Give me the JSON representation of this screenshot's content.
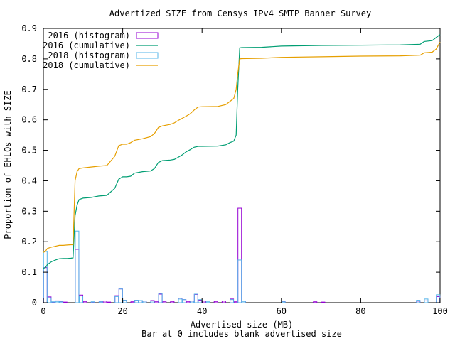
{
  "chart_data": {
    "type": "line",
    "title": "Advertized SIZE from Censys IPv4 SMTP Banner Survey",
    "xlabel": "Advertised size (MB)",
    "xlabel2": "Bar at 0 includes blank advertised size",
    "ylabel": "Proportion of EHLOs with SIZE",
    "xlim": [
      0,
      100
    ],
    "ylim": [
      0,
      0.9
    ],
    "xticks": [
      0,
      20,
      40,
      60,
      80,
      100
    ],
    "yticks": [
      0,
      0.1,
      0.2,
      0.3,
      0.4,
      0.5,
      0.6,
      0.7,
      0.8,
      0.9
    ],
    "xtick_labels": [
      "0",
      "20",
      "40",
      "60",
      "80",
      "100"
    ],
    "ytick_labels": [
      "0",
      "0.1",
      "0.2",
      "0.3",
      "0.4",
      "0.5",
      "0.6",
      "0.7",
      "0.8",
      "0.9"
    ],
    "grid": false,
    "legend_position": "top-left",
    "series": [
      {
        "name": "2016 (histogram)",
        "kind": "histogram",
        "color": "#9400d3",
        "bars": [
          [
            0,
            0.115
          ],
          [
            1,
            0.019
          ],
          [
            2,
            0.002
          ],
          [
            3,
            0.006
          ],
          [
            4,
            0.004
          ],
          [
            5,
            0.002
          ],
          [
            8,
            0.175
          ],
          [
            9,
            0.025
          ],
          [
            10,
            0.004
          ],
          [
            12,
            0.002
          ],
          [
            14,
            0.003
          ],
          [
            15,
            0.005
          ],
          [
            16,
            0.002
          ],
          [
            18,
            0.023
          ],
          [
            19,
            0.045
          ],
          [
            20,
            0.008
          ],
          [
            22,
            0.003
          ],
          [
            23,
            0.008
          ],
          [
            24,
            0.007
          ],
          [
            25,
            0.005
          ],
          [
            27,
            0.007
          ],
          [
            28,
            0.004
          ],
          [
            29,
            0.028
          ],
          [
            30,
            0.004
          ],
          [
            32,
            0.004
          ],
          [
            34,
            0.015
          ],
          [
            35,
            0.01
          ],
          [
            36,
            0.004
          ],
          [
            37,
            0.005
          ],
          [
            38,
            0.027
          ],
          [
            39,
            0.008
          ],
          [
            40,
            0.005
          ],
          [
            43,
            0.004
          ],
          [
            45,
            0.005
          ],
          [
            47,
            0.012
          ],
          [
            48,
            0.003
          ],
          [
            49,
            0.31
          ],
          [
            50,
            0.005
          ],
          [
            60,
            0.005
          ],
          [
            68,
            0.003
          ],
          [
            70,
            0.002
          ],
          [
            94,
            0.005
          ],
          [
            96,
            0.006
          ],
          [
            99,
            0.02
          ]
        ]
      },
      {
        "name": "2016 (cumulative)",
        "kind": "cumulative",
        "color": "#009e73",
        "x": [
          0,
          0.5,
          1,
          2,
          3,
          4,
          5,
          6,
          7,
          7.5,
          8,
          8.5,
          9,
          10,
          12,
          14,
          16,
          18,
          19,
          20,
          21,
          22,
          23,
          25,
          27,
          28,
          29,
          30,
          32,
          33,
          34,
          35,
          36,
          37,
          38,
          39,
          40,
          44,
          46,
          47,
          48,
          48.6,
          49,
          49.5,
          50,
          55,
          60,
          70,
          80,
          90,
          95,
          96,
          98,
          99,
          100
        ],
        "y": [
          0.113,
          0.115,
          0.125,
          0.134,
          0.14,
          0.144,
          0.145,
          0.145,
          0.146,
          0.147,
          0.285,
          0.32,
          0.338,
          0.343,
          0.345,
          0.35,
          0.352,
          0.375,
          0.405,
          0.413,
          0.413,
          0.415,
          0.425,
          0.43,
          0.432,
          0.44,
          0.46,
          0.466,
          0.468,
          0.47,
          0.477,
          0.485,
          0.495,
          0.502,
          0.51,
          0.513,
          0.513,
          0.514,
          0.518,
          0.525,
          0.53,
          0.55,
          0.7,
          0.836,
          0.837,
          0.838,
          0.842,
          0.844,
          0.845,
          0.846,
          0.848,
          0.857,
          0.86,
          0.87,
          0.88
        ]
      },
      {
        "name": "2018 (histogram)",
        "kind": "histogram",
        "color": "#56b4e9",
        "bars": [
          [
            0,
            0.168
          ],
          [
            1,
            0.016
          ],
          [
            2,
            0.003
          ],
          [
            3,
            0.004
          ],
          [
            4,
            0.003
          ],
          [
            8,
            0.235
          ],
          [
            9,
            0.022
          ],
          [
            12,
            0.003
          ],
          [
            14,
            0.003
          ],
          [
            18,
            0.02
          ],
          [
            19,
            0.045
          ],
          [
            20,
            0.008
          ],
          [
            23,
            0.008
          ],
          [
            24,
            0.007
          ],
          [
            25,
            0.005
          ],
          [
            27,
            0.005
          ],
          [
            29,
            0.03
          ],
          [
            34,
            0.012
          ],
          [
            35,
            0.01
          ],
          [
            37,
            0.005
          ],
          [
            38,
            0.028
          ],
          [
            39,
            0.01
          ],
          [
            41,
            0.003
          ],
          [
            47,
            0.01
          ],
          [
            49,
            0.14
          ],
          [
            50,
            0.004
          ],
          [
            60,
            0.003
          ],
          [
            94,
            0.008
          ],
          [
            96,
            0.012
          ],
          [
            99,
            0.026
          ]
        ]
      },
      {
        "name": "2018 (cumulative)",
        "kind": "cumulative",
        "color": "#e69f00",
        "x": [
          0,
          0.5,
          1,
          2,
          3,
          4,
          5,
          6,
          7,
          7.5,
          8,
          8.5,
          9,
          10,
          12,
          14,
          16,
          18,
          19,
          20,
          21,
          22,
          23,
          25,
          27,
          28,
          29,
          30,
          32,
          33,
          34,
          35,
          36,
          37,
          38,
          39,
          40,
          44,
          46,
          47,
          48,
          48.6,
          49,
          49.5,
          50,
          55,
          60,
          70,
          80,
          90,
          95,
          96,
          98,
          99,
          100
        ],
        "y": [
          0.165,
          0.168,
          0.178,
          0.182,
          0.185,
          0.188,
          0.188,
          0.189,
          0.19,
          0.19,
          0.4,
          0.43,
          0.44,
          0.442,
          0.445,
          0.448,
          0.45,
          0.48,
          0.515,
          0.52,
          0.52,
          0.525,
          0.533,
          0.538,
          0.545,
          0.555,
          0.575,
          0.58,
          0.585,
          0.59,
          0.598,
          0.605,
          0.612,
          0.62,
          0.632,
          0.642,
          0.643,
          0.644,
          0.65,
          0.66,
          0.67,
          0.7,
          0.75,
          0.8,
          0.801,
          0.802,
          0.805,
          0.807,
          0.809,
          0.81,
          0.812,
          0.82,
          0.822,
          0.832,
          0.855
        ]
      }
    ]
  }
}
